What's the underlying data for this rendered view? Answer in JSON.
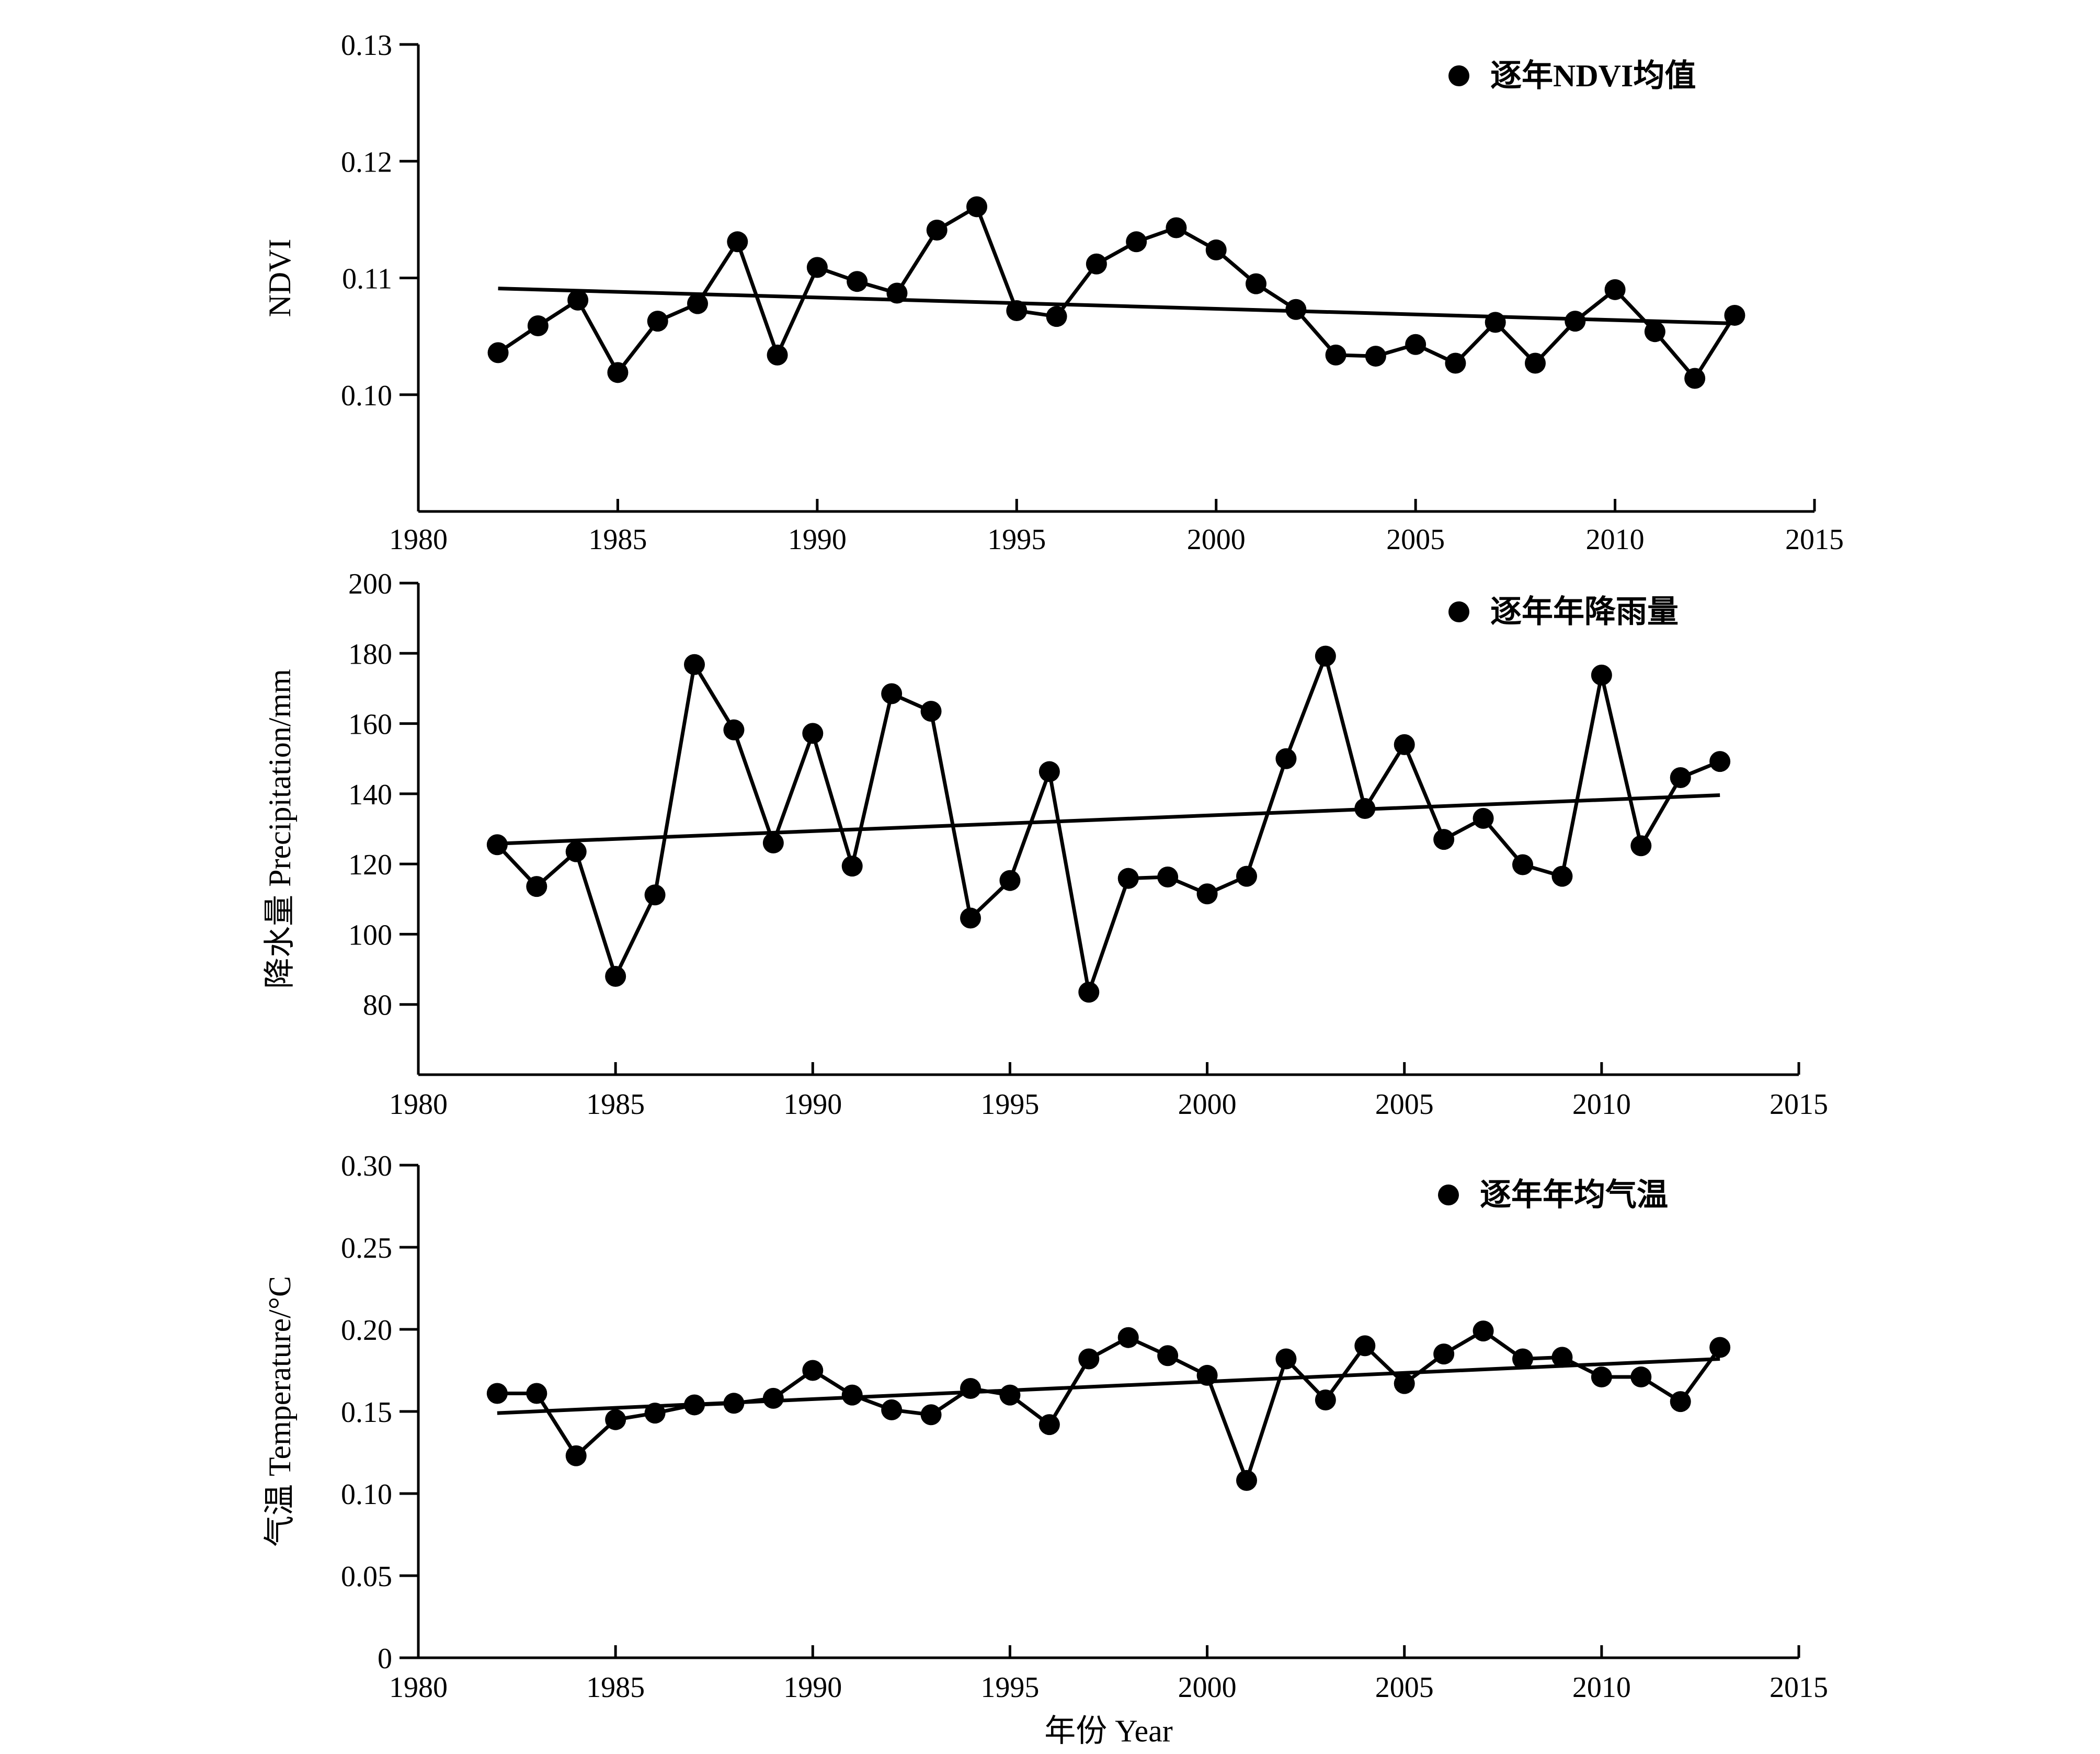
{
  "chart_data": [
    {
      "type": "line",
      "ylabel": "NDVI",
      "xlim": [
        1980,
        2015
      ],
      "ylim": [
        0.09,
        0.13
      ],
      "xticks": [
        "1980",
        "1985",
        "1990",
        "1995",
        "2000",
        "2005",
        "2010",
        "2015"
      ],
      "yticks": [
        "0.10",
        "0.11",
        "0.12",
        "0.13"
      ],
      "legend": "逐年NDVI均值",
      "legend_position": "top-right",
      "series": [
        {
          "name": "逐年NDVI均值",
          "x": [
            1982,
            1983,
            1984,
            1985,
            1986,
            1987,
            1988,
            1989,
            1990,
            1991,
            1992,
            1993,
            1994,
            1995,
            1996,
            1997,
            1998,
            1999,
            2000,
            2001,
            2002,
            2003,
            2004,
            2005,
            2006,
            2007,
            2008,
            2009,
            2010,
            2011,
            2012,
            2013
          ],
          "y": [
            0.1036,
            0.1059,
            0.1081,
            0.1019,
            0.1063,
            0.1078,
            0.1131,
            0.1034,
            0.1109,
            0.1097,
            0.1087,
            0.1141,
            0.1161,
            0.1072,
            0.1067,
            0.1112,
            0.1131,
            0.1143,
            0.1124,
            0.1095,
            0.1073,
            0.1034,
            0.1033,
            0.1043,
            0.1027,
            0.1062,
            0.1027,
            0.1063,
            0.109,
            0.1054,
            0.1014,
            0.1068
          ]
        }
      ],
      "trend": {
        "x": [
          1982,
          2013
        ],
        "y": [
          0.1091,
          0.1061
        ]
      }
    },
    {
      "type": "line",
      "ylabel": "降水量 Precipitation/mm",
      "xlim": [
        1980,
        2015
      ],
      "ylim": [
        60,
        200
      ],
      "xticks": [
        "1980",
        "1985",
        "1990",
        "1995",
        "2000",
        "2005",
        "2010",
        "2015"
      ],
      "yticks": [
        "80",
        "100",
        "120",
        "140",
        "160",
        "180",
        "200"
      ],
      "legend": "逐年年降雨量",
      "legend_position": "top-right",
      "series": [
        {
          "name": "逐年年降雨量",
          "x": [
            1982,
            1983,
            1984,
            1985,
            1986,
            1987,
            1988,
            1989,
            1990,
            1991,
            1992,
            1993,
            1994,
            1995,
            1996,
            1997,
            1998,
            1999,
            2000,
            2001,
            2002,
            2003,
            2004,
            2005,
            2006,
            2007,
            2008,
            2009,
            2010,
            2011,
            2012,
            2013
          ],
          "y": [
            125.5,
            113.6,
            123.5,
            88.0,
            111.2,
            176.8,
            158.2,
            126.0,
            157.2,
            119.4,
            168.5,
            163.5,
            104.6,
            115.3,
            146.3,
            83.5,
            115.9,
            116.3,
            111.5,
            116.5,
            150.0,
            179.2,
            135.8,
            154.0,
            127.0,
            133.0,
            119.8,
            116.5,
            173.8,
            125.2,
            144.6,
            149.2
          ]
        }
      ],
      "trend": {
        "x": [
          1982,
          2013
        ],
        "y": [
          125.8,
          139.6
        ]
      }
    },
    {
      "type": "line",
      "ylabel": "气温 Temperature/°C",
      "xlabel": "年份 Year",
      "xlim": [
        1980,
        2015
      ],
      "ylim": [
        0,
        0.3
      ],
      "xticks": [
        "1980",
        "1985",
        "1990",
        "1995",
        "2000",
        "2005",
        "2010",
        "2015"
      ],
      "yticks": [
        "0",
        "0.05",
        "0.10",
        "0.15",
        "0.20",
        "0.25",
        "0.30"
      ],
      "legend": "逐年年均气温",
      "legend_position": "top-right",
      "series": [
        {
          "name": "逐年年均气温",
          "x": [
            1982,
            1983,
            1984,
            1985,
            1986,
            1987,
            1988,
            1989,
            1990,
            1991,
            1992,
            1993,
            1994,
            1995,
            1996,
            1997,
            1998,
            1999,
            2000,
            2001,
            2002,
            2003,
            2004,
            2005,
            2006,
            2007,
            2008,
            2009,
            2010,
            2011,
            2012,
            2013
          ],
          "y": [
            0.161,
            0.161,
            0.123,
            0.145,
            0.149,
            0.154,
            0.155,
            0.158,
            0.175,
            0.16,
            0.151,
            0.148,
            0.164,
            0.16,
            0.142,
            0.182,
            0.195,
            0.184,
            0.172,
            0.108,
            0.182,
            0.157,
            0.19,
            0.167,
            0.185,
            0.199,
            0.182,
            0.183,
            0.171,
            0.171,
            0.156,
            0.189
          ]
        }
      ],
      "trend": {
        "x": [
          1982,
          2013
        ],
        "y": [
          0.149,
          0.182
        ]
      }
    }
  ]
}
